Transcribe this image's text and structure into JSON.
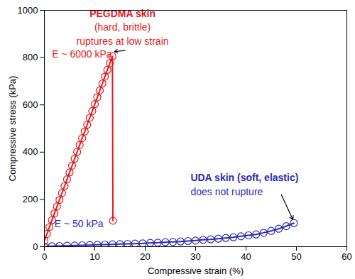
{
  "chart_data": {
    "type": "line",
    "x_label": "Compressive strain (%)",
    "y_label": "Compressive stress (kPa)",
    "xlim": [
      0,
      60
    ],
    "xticks": [
      0,
      10,
      20,
      30,
      40,
      50,
      60
    ],
    "ylim": [
      0,
      1000
    ],
    "yticks": [
      0,
      200,
      400,
      600,
      800,
      1000
    ],
    "grid": false,
    "series": [
      {
        "color": "#e41a1c",
        "marker": "circle",
        "line_style": "solid",
        "x": [
          0,
          0.5,
          1,
          1.5,
          2,
          2.5,
          3,
          3.5,
          4,
          4.5,
          5,
          5.5,
          6,
          6.5,
          7,
          7.5,
          8,
          8.5,
          9,
          9.5,
          10,
          10.5,
          11,
          11.5,
          12,
          12.5,
          13,
          13.5,
          13.6
        ],
        "values": [
          25,
          54,
          83,
          112,
          141,
          170,
          198,
          227,
          256,
          285,
          314,
          343,
          372,
          401,
          430,
          459,
          487,
          516,
          545,
          574,
          603,
          632,
          661,
          690,
          719,
          748,
          776,
          805,
          110
        ]
      },
      {
        "color": "#2b2bb5",
        "marker": "circle",
        "line_style": "solid",
        "x": [
          0,
          1.5,
          3,
          4.5,
          6,
          7.5,
          9,
          10.5,
          12,
          13.5,
          15,
          16.5,
          18,
          19.5,
          21,
          22.5,
          24,
          25.5,
          27,
          28.5,
          30,
          31.5,
          33,
          34.5,
          36,
          37.5,
          39,
          40.5,
          42,
          43.5,
          45,
          46.5,
          48,
          49.5
        ],
        "values": [
          0,
          2,
          3,
          4,
          5,
          6,
          7,
          8,
          9,
          10,
          11,
          12,
          13,
          14,
          16,
          17,
          19,
          20,
          22,
          24,
          26,
          29,
          31,
          34,
          37,
          40,
          44,
          48,
          52,
          59,
          67,
          76,
          87,
          100
        ]
      }
    ],
    "annotations": [
      {
        "lines": [
          "PEGDMA skin",
          "(hard, brittle)",
          "ruptures at low strain"
        ],
        "color": "#e41a1c"
      },
      {
        "lines": [
          "E ~ 6000 kPa"
        ],
        "color": "#e41a1c"
      },
      {
        "lines": [
          "E ~ 50 kPa"
        ],
        "color": "#2b2bb5"
      },
      {
        "lines": [
          "UDA skin (soft, elastic)",
          "does not rupture"
        ],
        "color": "#2b2bb5"
      }
    ]
  }
}
